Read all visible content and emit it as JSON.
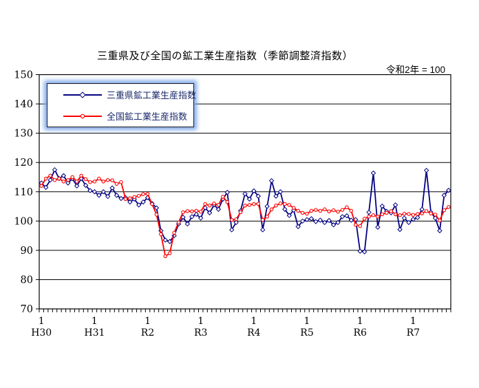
{
  "header": {
    "title": "三重県及び全国の鉱工業生産指数（季節調整済指数）",
    "subtitle": "令和2年 = 100"
  },
  "legend": {
    "items": [
      {
        "label": "三重県鉱工業生産指数",
        "color": "#000080",
        "marker": "diamond"
      },
      {
        "label": "全国鉱工業生産指数",
        "color": "#ff0000",
        "marker": "circle"
      }
    ]
  },
  "chart_data": {
    "type": "line",
    "title": "三重県及び全国の鉱工業生産指数（季節調整済指数）",
    "right_note": "令和2年 = 100",
    "grid": true,
    "legend_position": "top-left-inside",
    "y_axis": {
      "min": 70,
      "max": 150,
      "step": 10,
      "tick_labels": [
        "70",
        "80",
        "90",
        "100",
        "110",
        "120",
        "130",
        "140",
        "150"
      ]
    },
    "x_axis": {
      "month_tick_label": "1",
      "year_labels": [
        "H30",
        "H31",
        "R2",
        "R3",
        "R4",
        "R5",
        "R6",
        "R7"
      ],
      "months_per_year": 12,
      "n_points": 93
    },
    "series": [
      {
        "name": "三重県鉱工業生産指数",
        "color": "#000080",
        "marker": "diamond",
        "values": [
          113.0,
          111.5,
          114.0,
          117.5,
          114.5,
          115.5,
          113.0,
          114.5,
          112.0,
          114.5,
          112.2,
          110.4,
          110.0,
          108.8,
          110.0,
          108.4,
          111.3,
          108.8,
          107.7,
          108.0,
          106.5,
          107.5,
          105.5,
          106.5,
          108.0,
          106.0,
          104.5,
          96.7,
          93.5,
          93.0,
          95.0,
          99.0,
          101.3,
          99.0,
          101.5,
          102.3,
          101.0,
          104.5,
          102.8,
          105.5,
          104.0,
          107.5,
          109.8,
          97.0,
          99.5,
          103.5,
          109.3,
          107.5,
          110.3,
          108.5,
          97.0,
          105.0,
          113.8,
          108.5,
          110.0,
          104.0,
          101.9,
          103.7,
          98.1,
          100.0,
          100.5,
          100.8,
          99.8,
          100.3,
          99.5,
          100.2,
          98.7,
          99.5,
          101.5,
          101.8,
          100.3,
          100.5,
          89.7,
          89.5,
          103.0,
          116.4,
          97.9,
          105.1,
          103.3,
          102.8,
          105.5,
          97.1,
          101.0,
          99.5,
          100.6,
          101.2,
          104.0,
          117.3,
          103.0,
          101.0,
          96.7,
          108.8,
          110.5
        ]
      },
      {
        "name": "全国鉱工業生産指数",
        "color": "#ff0000",
        "marker": "circle",
        "values": [
          112.0,
          114.5,
          115.5,
          114.0,
          114.5,
          113.5,
          114.0,
          115.0,
          113.5,
          115.5,
          114.3,
          113.3,
          113.5,
          114.5,
          113.5,
          114.0,
          113.9,
          112.7,
          113.3,
          107.5,
          107.8,
          108.2,
          108.6,
          109.2,
          109.3,
          105.8,
          102.2,
          95.5,
          88.0,
          89.0,
          96.0,
          99.5,
          103.0,
          103.4,
          103.3,
          103.5,
          103.2,
          105.8,
          105.3,
          106.0,
          105.5,
          108.3,
          106.5,
          100.4,
          100.6,
          103.0,
          105.3,
          105.5,
          105.8,
          105.9,
          100.4,
          101.5,
          104.0,
          105.3,
          106.0,
          105.8,
          105.5,
          104.5,
          103.5,
          102.8,
          102.5,
          103.5,
          103.8,
          103.5,
          104.0,
          103.3,
          103.7,
          103.2,
          103.8,
          104.7,
          103.5,
          98.7,
          98.3,
          100.8,
          101.5,
          102.0,
          101.5,
          102.3,
          102.8,
          103.4,
          102.3,
          102.0,
          102.5,
          102.4,
          102.1,
          102.4,
          102.6,
          103.4,
          102.6,
          102.2,
          100.2,
          103.7,
          104.8
        ]
      }
    ]
  }
}
